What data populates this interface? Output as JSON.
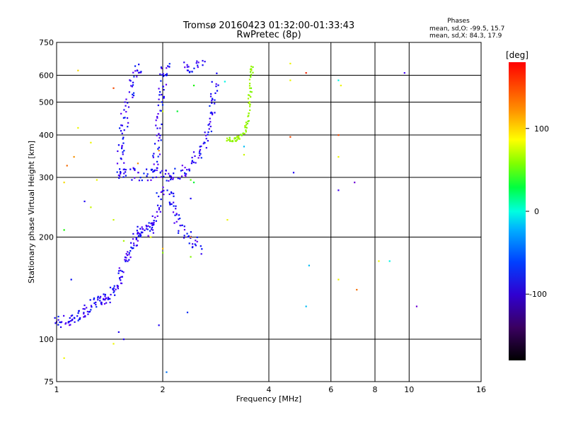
{
  "chart_data": {
    "type": "scatter",
    "title": "Tromsø 20160423 01:32:00-01:33:43",
    "subtitle": "RwPretec (8p)",
    "xlabel": "Frequency [MHz]",
    "ylabel": "Stationary phase Virtual Height [km]",
    "x_scale": "log",
    "y_scale": "log",
    "xlim": [
      1,
      16
    ],
    "ylim": [
      75,
      750
    ],
    "x_ticks": [
      1,
      2,
      4,
      6,
      8,
      10,
      16
    ],
    "y_ticks": [
      75,
      100,
      200,
      300,
      400,
      500,
      600,
      750
    ],
    "x_gridlines": [
      2,
      4,
      6,
      8,
      10
    ],
    "y_gridlines": [
      100,
      200,
      300,
      400,
      500,
      600
    ],
    "grid": true,
    "phase_stats": {
      "header": "Phases",
      "line_o": "mean, sd,O: -99.5, 15.7",
      "line_x": "mean, sd,X:  84.3, 17.9"
    },
    "colorbar": {
      "label": "[deg]",
      "ticks": [
        100,
        0,
        -100
      ],
      "range": [
        -180,
        180
      ]
    },
    "o_trace": {
      "color_deg": -100,
      "segments": [
        [
          [
            1.0,
            112
          ],
          [
            1.05,
            113
          ],
          [
            1.1,
            114
          ],
          [
            1.15,
            117
          ],
          [
            1.2,
            121
          ],
          [
            1.25,
            125
          ],
          [
            1.3,
            129
          ],
          [
            1.35,
            131
          ],
          [
            1.4,
            133
          ],
          [
            1.45,
            138
          ],
          [
            1.5,
            148
          ],
          [
            1.55,
            162
          ],
          [
            1.6,
            178
          ],
          [
            1.65,
            192
          ],
          [
            1.7,
            202
          ],
          [
            1.75,
            208
          ],
          [
            1.8,
            212
          ],
          [
            1.85,
            215
          ],
          [
            1.9,
            225
          ],
          [
            1.95,
            245
          ],
          [
            1.98,
            300
          ]
        ],
        [
          [
            1.55,
            300
          ],
          [
            1.52,
            320
          ],
          [
            1.52,
            360
          ],
          [
            1.54,
            410
          ],
          [
            1.57,
            470
          ],
          [
            1.62,
            540
          ],
          [
            1.68,
            600
          ],
          [
            1.72,
            630
          ]
        ],
        [
          [
            1.6,
            310
          ],
          [
            1.7,
            306
          ],
          [
            1.85,
            306
          ],
          [
            1.95,
            312
          ]
        ],
        [
          [
            1.9,
            320
          ],
          [
            1.92,
            360
          ],
          [
            1.95,
            420
          ],
          [
            1.98,
            490
          ],
          [
            2.0,
            550
          ],
          [
            2.02,
            610
          ],
          [
            2.05,
            640
          ]
        ],
        [
          [
            2.0,
            306
          ],
          [
            2.1,
            305
          ],
          [
            2.2,
            308
          ],
          [
            2.35,
            318
          ],
          [
            2.5,
            340
          ],
          [
            2.6,
            370
          ],
          [
            2.7,
            410
          ],
          [
            2.75,
            460
          ],
          [
            2.8,
            520
          ],
          [
            2.82,
            600
          ]
        ],
        [
          [
            2.3,
            640
          ],
          [
            2.45,
            636
          ],
          [
            2.6,
            640
          ]
        ],
        [
          [
            2.1,
            270
          ],
          [
            2.15,
            250
          ],
          [
            2.2,
            225
          ],
          [
            2.3,
            205
          ],
          [
            2.45,
            195
          ],
          [
            2.55,
            180
          ]
        ]
      ]
    },
    "x_trace": {
      "color_deg": 84,
      "points": [
        [
          3.05,
          390
        ],
        [
          3.15,
          388
        ],
        [
          3.25,
          390
        ],
        [
          3.35,
          398
        ],
        [
          3.45,
          420
        ],
        [
          3.5,
          450
        ],
        [
          3.52,
          500
        ],
        [
          3.55,
          550
        ],
        [
          3.57,
          610
        ],
        [
          3.6,
          640
        ]
      ]
    },
    "scatter_points": [
      {
        "x": 1.15,
        "y": 620,
        "deg": 120
      },
      {
        "x": 1.15,
        "y": 420,
        "deg": 110
      },
      {
        "x": 1.12,
        "y": 345,
        "deg": 140
      },
      {
        "x": 1.07,
        "y": 325,
        "deg": 150
      },
      {
        "x": 1.05,
        "y": 290,
        "deg": 120
      },
      {
        "x": 1.2,
        "y": 255,
        "deg": -100
      },
      {
        "x": 1.25,
        "y": 245,
        "deg": 100
      },
      {
        "x": 1.05,
        "y": 210,
        "deg": 50
      },
      {
        "x": 1.05,
        "y": 88,
        "deg": 110
      },
      {
        "x": 1.1,
        "y": 150,
        "deg": -90
      },
      {
        "x": 1.45,
        "y": 97,
        "deg": 110
      },
      {
        "x": 1.5,
        "y": 105,
        "deg": -100
      },
      {
        "x": 1.55,
        "y": 100,
        "deg": -100
      },
      {
        "x": 1.95,
        "y": 110,
        "deg": -100
      },
      {
        "x": 2.35,
        "y": 120,
        "deg": -80
      },
      {
        "x": 2.05,
        "y": 80,
        "deg": -60
      },
      {
        "x": 2.4,
        "y": 175,
        "deg": 80
      },
      {
        "x": 2.4,
        "y": 260,
        "deg": -100
      },
      {
        "x": 2.45,
        "y": 290,
        "deg": 30
      },
      {
        "x": 2.4,
        "y": 295,
        "deg": 70
      },
      {
        "x": 3.05,
        "y": 225,
        "deg": 110
      },
      {
        "x": 3.4,
        "y": 350,
        "deg": 100
      },
      {
        "x": 3.4,
        "y": 370,
        "deg": -40
      },
      {
        "x": 3.0,
        "y": 575,
        "deg": -20
      },
      {
        "x": 4.6,
        "y": 650,
        "deg": 110
      },
      {
        "x": 4.6,
        "y": 580,
        "deg": 110
      },
      {
        "x": 4.6,
        "y": 395,
        "deg": 160
      },
      {
        "x": 4.7,
        "y": 310,
        "deg": -100
      },
      {
        "x": 5.1,
        "y": 610,
        "deg": 170
      },
      {
        "x": 5.2,
        "y": 165,
        "deg": -40
      },
      {
        "x": 5.1,
        "y": 125,
        "deg": -40
      },
      {
        "x": 6.3,
        "y": 580,
        "deg": -20
      },
      {
        "x": 6.3,
        "y": 400,
        "deg": 160
      },
      {
        "x": 6.3,
        "y": 345,
        "deg": 110
      },
      {
        "x": 6.3,
        "y": 275,
        "deg": -110
      },
      {
        "x": 6.3,
        "y": 150,
        "deg": 110
      },
      {
        "x": 6.4,
        "y": 560,
        "deg": 110
      },
      {
        "x": 7.0,
        "y": 290,
        "deg": -130
      },
      {
        "x": 7.1,
        "y": 140,
        "deg": 150
      },
      {
        "x": 8.2,
        "y": 170,
        "deg": 110
      },
      {
        "x": 8.8,
        "y": 170,
        "deg": -20
      },
      {
        "x": 9.7,
        "y": 610,
        "deg": -110
      },
      {
        "x": 10.5,
        "y": 125,
        "deg": -130
      },
      {
        "x": 1.45,
        "y": 550,
        "deg": 160
      },
      {
        "x": 1.7,
        "y": 330,
        "deg": 140
      },
      {
        "x": 1.3,
        "y": 295,
        "deg": 110
      },
      {
        "x": 1.45,
        "y": 225,
        "deg": 100
      },
      {
        "x": 1.55,
        "y": 195,
        "deg": 90
      },
      {
        "x": 1.85,
        "y": 200,
        "deg": 110
      },
      {
        "x": 2.0,
        "y": 185,
        "deg": 130
      },
      {
        "x": 2.0,
        "y": 180,
        "deg": 80
      },
      {
        "x": 1.95,
        "y": 360,
        "deg": 140
      },
      {
        "x": 2.0,
        "y": 470,
        "deg": 100
      },
      {
        "x": 2.2,
        "y": 470,
        "deg": 30
      },
      {
        "x": 2.45,
        "y": 560,
        "deg": 50
      },
      {
        "x": 2.4,
        "y": 200,
        "deg": 140
      },
      {
        "x": 1.25,
        "y": 380,
        "deg": 110
      }
    ]
  }
}
